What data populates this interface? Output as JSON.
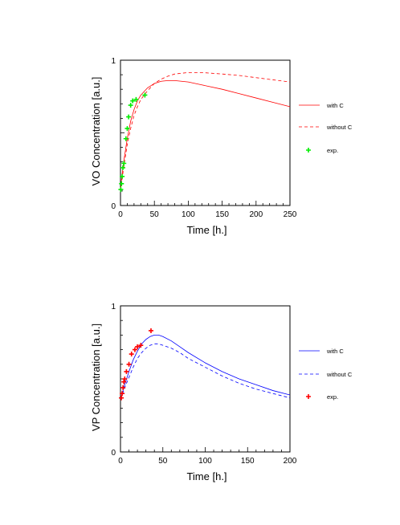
{
  "chart_data": [
    {
      "type": "line",
      "title": "",
      "xlabel": "Time [h.]",
      "ylabel": "VO Concentration [a.u.]",
      "xlim": [
        0,
        250
      ],
      "ylim": [
        0,
        1
      ],
      "xticks": [
        0,
        50,
        100,
        150,
        200,
        250
      ],
      "yticks": [
        0,
        1
      ],
      "ytick_labels": [
        "0",
        "1"
      ],
      "legend_position": "right",
      "grid": false,
      "series": [
        {
          "name": "with C",
          "color": "#ff0000",
          "style": "solid",
          "x": [
            0,
            2,
            5,
            10,
            15,
            20,
            25,
            30,
            40,
            50,
            60,
            70,
            80,
            100,
            120,
            150,
            175,
            200,
            225,
            250
          ],
          "y": [
            0.1,
            0.2,
            0.31,
            0.46,
            0.58,
            0.66,
            0.72,
            0.76,
            0.81,
            0.84,
            0.855,
            0.86,
            0.86,
            0.85,
            0.83,
            0.8,
            0.77,
            0.74,
            0.71,
            0.68
          ]
        },
        {
          "name": "without C",
          "color": "#ff0000",
          "style": "dashed",
          "x": [
            0,
            2,
            5,
            10,
            15,
            20,
            25,
            30,
            40,
            50,
            60,
            70,
            80,
            100,
            120,
            150,
            175,
            200,
            225,
            250
          ],
          "y": [
            0.1,
            0.17,
            0.27,
            0.42,
            0.53,
            0.62,
            0.68,
            0.73,
            0.79,
            0.84,
            0.87,
            0.89,
            0.905,
            0.915,
            0.915,
            0.905,
            0.895,
            0.88,
            0.865,
            0.85
          ]
        },
        {
          "name": "exp.",
          "color": "#00ee00",
          "style": "markers",
          "x": [
            0.5,
            1.5,
            2.5,
            3.5,
            5,
            8,
            10,
            12,
            15,
            18,
            23,
            36
          ],
          "y": [
            0.11,
            0.15,
            0.2,
            0.26,
            0.29,
            0.46,
            0.53,
            0.61,
            0.69,
            0.72,
            0.73,
            0.76
          ]
        }
      ]
    },
    {
      "type": "line",
      "title": "",
      "xlabel": "Time [h.]",
      "ylabel": "VP Concentration [a.u.]",
      "xlim": [
        0,
        200
      ],
      "ylim": [
        0,
        1
      ],
      "xticks": [
        0,
        50,
        100,
        150,
        200
      ],
      "yticks": [
        0,
        1
      ],
      "ytick_labels": [
        "0",
        "1"
      ],
      "legend_position": "right",
      "grid": false,
      "series": [
        {
          "name": "with C",
          "color": "#0000ff",
          "style": "solid",
          "x": [
            0,
            5,
            10,
            15,
            20,
            25,
            30,
            35,
            40,
            45,
            50,
            60,
            70,
            80,
            100,
            120,
            140,
            160,
            180,
            200
          ],
          "y": [
            0.36,
            0.46,
            0.55,
            0.63,
            0.69,
            0.74,
            0.77,
            0.79,
            0.8,
            0.8,
            0.79,
            0.76,
            0.72,
            0.68,
            0.61,
            0.55,
            0.5,
            0.46,
            0.42,
            0.39
          ]
        },
        {
          "name": "without C",
          "color": "#0000ff",
          "style": "dashed",
          "x": [
            0,
            5,
            10,
            15,
            20,
            25,
            30,
            35,
            40,
            45,
            50,
            60,
            70,
            80,
            100,
            120,
            140,
            160,
            180,
            200
          ],
          "y": [
            0.36,
            0.44,
            0.51,
            0.58,
            0.64,
            0.68,
            0.71,
            0.73,
            0.74,
            0.74,
            0.73,
            0.71,
            0.68,
            0.64,
            0.58,
            0.52,
            0.47,
            0.43,
            0.4,
            0.37
          ]
        },
        {
          "name": "exp.",
          "color": "#ff0000",
          "style": "markers",
          "x": [
            1,
            2,
            3,
            4,
            5,
            7,
            10,
            13,
            17,
            20,
            24,
            36
          ],
          "y": [
            0.37,
            0.4,
            0.44,
            0.48,
            0.5,
            0.55,
            0.6,
            0.67,
            0.7,
            0.72,
            0.73,
            0.83
          ]
        }
      ]
    }
  ]
}
